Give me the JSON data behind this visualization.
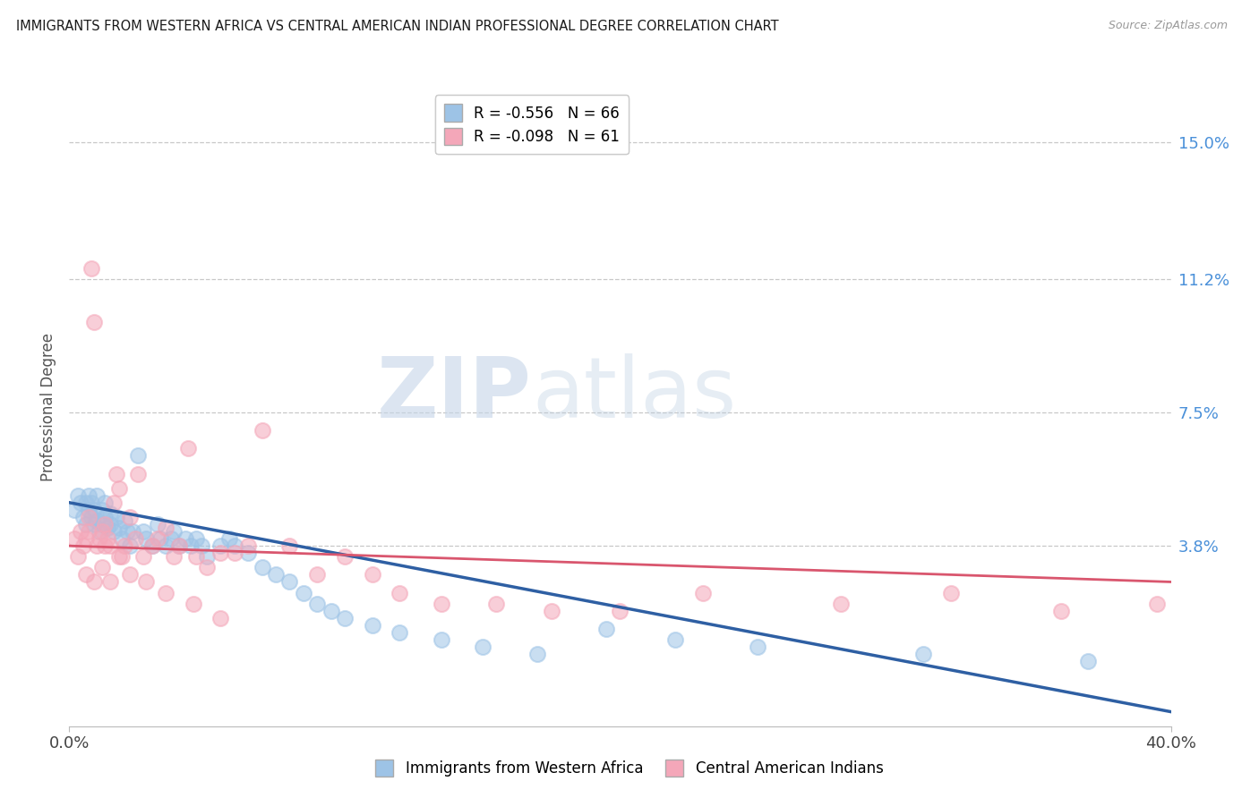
{
  "title": "IMMIGRANTS FROM WESTERN AFRICA VS CENTRAL AMERICAN INDIAN PROFESSIONAL DEGREE CORRELATION CHART",
  "source": "Source: ZipAtlas.com",
  "ylabel": "Professional Degree",
  "ytick_labels": [
    "15.0%",
    "11.2%",
    "7.5%",
    "3.8%"
  ],
  "ytick_values": [
    0.15,
    0.112,
    0.075,
    0.038
  ],
  "xmin": 0.0,
  "xmax": 0.4,
  "ymin": -0.012,
  "ymax": 0.165,
  "legend1_r": "-0.556",
  "legend1_n": "66",
  "legend2_r": "-0.098",
  "legend2_n": "61",
  "blue_color": "#9dc3e6",
  "pink_color": "#f4a7b9",
  "blue_line_color": "#2e5fa3",
  "pink_line_color": "#d9566e",
  "watermark_zip": "ZIP",
  "watermark_atlas": "atlas",
  "blue_line_x0": 0.0,
  "blue_line_y0": 0.05,
  "blue_line_x1": 0.4,
  "blue_line_y1": -0.008,
  "pink_line_x0": 0.0,
  "pink_line_y0": 0.038,
  "pink_line_x1": 0.4,
  "pink_line_y1": 0.028,
  "blue_points_x": [
    0.002,
    0.003,
    0.004,
    0.005,
    0.006,
    0.006,
    0.007,
    0.007,
    0.008,
    0.008,
    0.009,
    0.009,
    0.01,
    0.01,
    0.011,
    0.012,
    0.012,
    0.013,
    0.013,
    0.014,
    0.015,
    0.015,
    0.016,
    0.017,
    0.018,
    0.019,
    0.02,
    0.021,
    0.022,
    0.023,
    0.025,
    0.027,
    0.028,
    0.03,
    0.032,
    0.033,
    0.035,
    0.037,
    0.038,
    0.04,
    0.042,
    0.044,
    0.046,
    0.048,
    0.05,
    0.055,
    0.058,
    0.06,
    0.065,
    0.07,
    0.075,
    0.08,
    0.085,
    0.09,
    0.095,
    0.1,
    0.11,
    0.12,
    0.135,
    0.15,
    0.17,
    0.195,
    0.22,
    0.25,
    0.31,
    0.37
  ],
  "blue_points_y": [
    0.048,
    0.052,
    0.05,
    0.046,
    0.044,
    0.05,
    0.048,
    0.052,
    0.046,
    0.05,
    0.044,
    0.048,
    0.045,
    0.052,
    0.042,
    0.048,
    0.044,
    0.05,
    0.046,
    0.043,
    0.047,
    0.044,
    0.042,
    0.046,
    0.043,
    0.04,
    0.045,
    0.042,
    0.038,
    0.042,
    0.063,
    0.042,
    0.04,
    0.038,
    0.044,
    0.04,
    0.038,
    0.04,
    0.042,
    0.038,
    0.04,
    0.038,
    0.04,
    0.038,
    0.035,
    0.038,
    0.04,
    0.038,
    0.036,
    0.032,
    0.03,
    0.028,
    0.025,
    0.022,
    0.02,
    0.018,
    0.016,
    0.014,
    0.012,
    0.01,
    0.008,
    0.015,
    0.012,
    0.01,
    0.008,
    0.006
  ],
  "pink_points_x": [
    0.002,
    0.003,
    0.004,
    0.005,
    0.006,
    0.007,
    0.007,
    0.008,
    0.009,
    0.01,
    0.011,
    0.012,
    0.013,
    0.013,
    0.014,
    0.015,
    0.016,
    0.017,
    0.018,
    0.019,
    0.02,
    0.022,
    0.024,
    0.025,
    0.027,
    0.03,
    0.032,
    0.035,
    0.038,
    0.04,
    0.043,
    0.046,
    0.05,
    0.055,
    0.06,
    0.065,
    0.07,
    0.08,
    0.09,
    0.1,
    0.11,
    0.12,
    0.135,
    0.155,
    0.175,
    0.2,
    0.23,
    0.28,
    0.32,
    0.36,
    0.395,
    0.006,
    0.009,
    0.012,
    0.015,
    0.018,
    0.022,
    0.028,
    0.035,
    0.045,
    0.055
  ],
  "pink_points_y": [
    0.04,
    0.035,
    0.042,
    0.038,
    0.04,
    0.046,
    0.042,
    0.115,
    0.1,
    0.038,
    0.04,
    0.042,
    0.038,
    0.044,
    0.04,
    0.038,
    0.05,
    0.058,
    0.054,
    0.035,
    0.038,
    0.046,
    0.04,
    0.058,
    0.035,
    0.038,
    0.04,
    0.043,
    0.035,
    0.038,
    0.065,
    0.035,
    0.032,
    0.036,
    0.036,
    0.038,
    0.07,
    0.038,
    0.03,
    0.035,
    0.03,
    0.025,
    0.022,
    0.022,
    0.02,
    0.02,
    0.025,
    0.022,
    0.025,
    0.02,
    0.022,
    0.03,
    0.028,
    0.032,
    0.028,
    0.035,
    0.03,
    0.028,
    0.025,
    0.022,
    0.018
  ]
}
